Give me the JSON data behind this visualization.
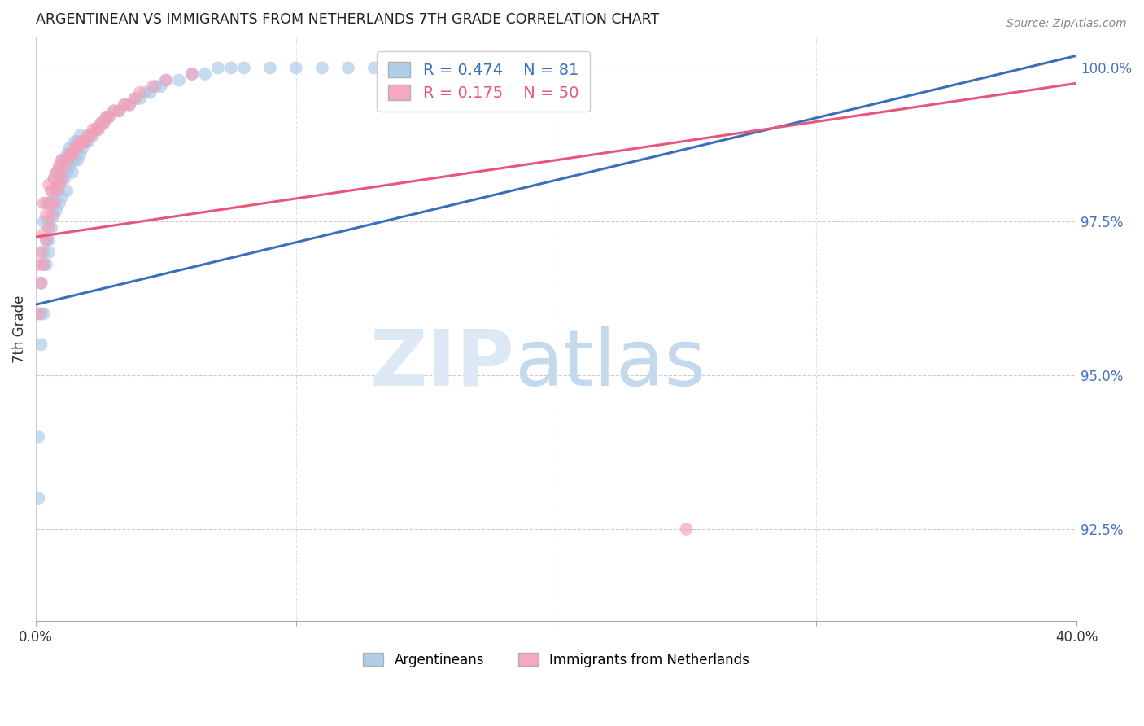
{
  "title": "ARGENTINEAN VS IMMIGRANTS FROM NETHERLANDS 7TH GRADE CORRELATION CHART",
  "source": "Source: ZipAtlas.com",
  "ylabel": "7th Grade",
  "legend_blue": {
    "R": "0.474",
    "N": "81",
    "label": "Argentineans"
  },
  "legend_pink": {
    "R": "0.175",
    "N": "50",
    "label": "Immigrants from Netherlands"
  },
  "blue_color": "#a8c8e8",
  "pink_color": "#f4a0b8",
  "blue_line_color": "#3a6fba",
  "pink_line_color": "#e8567a",
  "xlim": [
    0.0,
    0.4
  ],
  "ylim": [
    0.91,
    1.005
  ],
  "ygrid_values": [
    0.925,
    0.95,
    0.975,
    1.0
  ],
  "xgrid_lines": [
    0.0,
    0.1,
    0.2,
    0.3,
    0.4
  ],
  "blue_trend": [
    0.9615,
    1.002
  ],
  "pink_trend": [
    0.9725,
    0.9975
  ],
  "blue_scatter_x": [
    0.001,
    0.001,
    0.002,
    0.002,
    0.002,
    0.003,
    0.003,
    0.003,
    0.003,
    0.004,
    0.004,
    0.004,
    0.005,
    0.005,
    0.005,
    0.005,
    0.006,
    0.006,
    0.006,
    0.007,
    0.007,
    0.007,
    0.008,
    0.008,
    0.008,
    0.009,
    0.009,
    0.009,
    0.01,
    0.01,
    0.01,
    0.011,
    0.011,
    0.012,
    0.012,
    0.012,
    0.013,
    0.013,
    0.014,
    0.014,
    0.015,
    0.015,
    0.016,
    0.016,
    0.017,
    0.017,
    0.018,
    0.019,
    0.02,
    0.021,
    0.022,
    0.023,
    0.024,
    0.025,
    0.026,
    0.027,
    0.028,
    0.03,
    0.032,
    0.034,
    0.036,
    0.038,
    0.04,
    0.042,
    0.044,
    0.046,
    0.048,
    0.05,
    0.055,
    0.06,
    0.065,
    0.07,
    0.075,
    0.08,
    0.09,
    0.1,
    0.11,
    0.12,
    0.13,
    0.14,
    0.16
  ],
  "blue_scatter_y": [
    0.93,
    0.94,
    0.955,
    0.96,
    0.965,
    0.96,
    0.968,
    0.97,
    0.975,
    0.968,
    0.972,
    0.978,
    0.97,
    0.972,
    0.975,
    0.978,
    0.974,
    0.978,
    0.98,
    0.976,
    0.978,
    0.982,
    0.977,
    0.98,
    0.983,
    0.978,
    0.981,
    0.984,
    0.979,
    0.982,
    0.985,
    0.982,
    0.985,
    0.98,
    0.983,
    0.986,
    0.984,
    0.987,
    0.983,
    0.986,
    0.985,
    0.988,
    0.985,
    0.988,
    0.986,
    0.989,
    0.987,
    0.988,
    0.988,
    0.989,
    0.989,
    0.99,
    0.99,
    0.991,
    0.991,
    0.992,
    0.992,
    0.993,
    0.993,
    0.994,
    0.994,
    0.995,
    0.995,
    0.996,
    0.996,
    0.997,
    0.997,
    0.998,
    0.998,
    0.999,
    0.999,
    1.0,
    1.0,
    1.0,
    1.0,
    1.0,
    1.0,
    1.0,
    1.0,
    1.0,
    1.0
  ],
  "pink_scatter_x": [
    0.001,
    0.001,
    0.002,
    0.002,
    0.003,
    0.003,
    0.003,
    0.004,
    0.004,
    0.005,
    0.005,
    0.005,
    0.006,
    0.006,
    0.007,
    0.007,
    0.008,
    0.008,
    0.009,
    0.009,
    0.01,
    0.01,
    0.011,
    0.012,
    0.013,
    0.014,
    0.015,
    0.016,
    0.017,
    0.018,
    0.019,
    0.02,
    0.021,
    0.022,
    0.023,
    0.024,
    0.025,
    0.026,
    0.027,
    0.028,
    0.03,
    0.032,
    0.034,
    0.036,
    0.038,
    0.04,
    0.045,
    0.05,
    0.06,
    0.25
  ],
  "pink_scatter_y": [
    0.96,
    0.968,
    0.965,
    0.97,
    0.968,
    0.973,
    0.978,
    0.972,
    0.976,
    0.974,
    0.978,
    0.981,
    0.976,
    0.98,
    0.978,
    0.982,
    0.98,
    0.983,
    0.981,
    0.984,
    0.982,
    0.985,
    0.984,
    0.985,
    0.986,
    0.986,
    0.987,
    0.987,
    0.988,
    0.988,
    0.988,
    0.989,
    0.989,
    0.99,
    0.99,
    0.99,
    0.991,
    0.991,
    0.992,
    0.992,
    0.993,
    0.993,
    0.994,
    0.994,
    0.995,
    0.996,
    0.997,
    0.998,
    0.999,
    0.925
  ]
}
